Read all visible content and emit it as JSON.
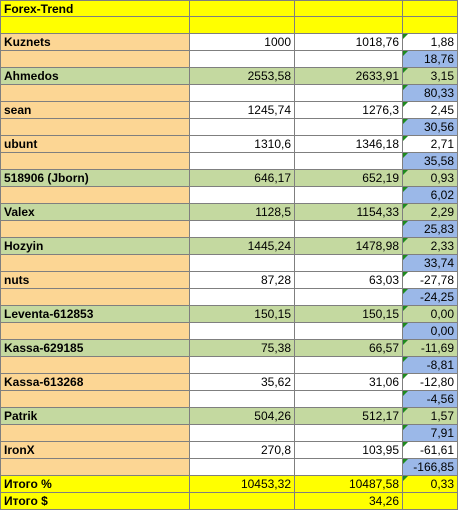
{
  "header": {
    "title": "Forex-Trend"
  },
  "participants": [
    {
      "name": "Kuznets",
      "start": "1000",
      "current": "1018,76",
      "pct": "1,88",
      "usd": "18,76",
      "color": "white"
    },
    {
      "name": "Ahmedos",
      "start": "2553,58",
      "current": "2633,91",
      "pct": "3,15",
      "usd": "80,33",
      "color": "green"
    },
    {
      "name": "sean",
      "start": "1245,74",
      "current": "1276,3",
      "pct": "2,45",
      "usd": "30,56",
      "color": "white"
    },
    {
      "name": "ubunt",
      "start": "1310,6",
      "current": "1346,18",
      "pct": "2,71",
      "usd": "35,58",
      "color": "white"
    },
    {
      "name": "518906 (Jborn)",
      "start": "646,17",
      "current": "652,19",
      "pct": "0,93",
      "usd": "6,02",
      "color": "green"
    },
    {
      "name": "Valex",
      "start": "1128,5",
      "current": "1154,33",
      "pct": "2,29",
      "usd": "25,83",
      "color": "green"
    },
    {
      "name": "Hozyin",
      "start": "1445,24",
      "current": "1478,98",
      "pct": "2,33",
      "usd": "33,74",
      "color": "green"
    },
    {
      "name": "nuts",
      "start": "87,28",
      "current": "63,03",
      "pct": "-27,78",
      "usd": "-24,25",
      "color": "white"
    },
    {
      "name": "Leventa-612853",
      "start": "150,15",
      "current": "150,15",
      "pct": "0,00",
      "usd": "0,00",
      "color": "green"
    },
    {
      "name": "Kassa-629185",
      "start": "75,38",
      "current": "66,57",
      "pct": "-11,69",
      "usd": "-8,81",
      "color": "green"
    },
    {
      "name": "Kassa-613268",
      "start": "35,62",
      "current": "31,06",
      "pct": "-12,80",
      "usd": "-4,56",
      "color": "white"
    },
    {
      "name": "Patrik",
      "start": "504,26",
      "current": "512,17",
      "pct": "1,57",
      "usd": "7,91",
      "color": "green"
    },
    {
      "name": "IronX",
      "start": "270,8",
      "current": "103,95",
      "pct": "-61,61",
      "usd": "-166,85",
      "color": "white"
    }
  ],
  "totals": {
    "pct_label": "Итого %",
    "start": "10453,32",
    "current": "10487,58",
    "pct": "0,33",
    "usd_label": "Итого $",
    "usd": "34,26"
  },
  "colors": {
    "yellow": "#ffff00",
    "orange": "#fcd694",
    "green": "#c4d9a0",
    "blue": "#9bb8e8",
    "indicator": "#1e8a1e",
    "grid": "#7f7f7f"
  }
}
